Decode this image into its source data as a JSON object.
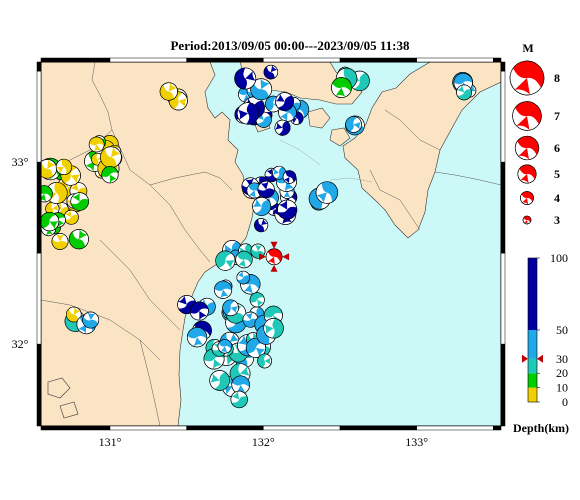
{
  "title": "Period:2013/09/05 00:00---2023/09/05 11:38",
  "map": {
    "lon_ticks": [
      "131°",
      "132°",
      "133°"
    ],
    "lat_ticks": [
      "33°",
      "32°"
    ],
    "lon_range": [
      130.55,
      133.55
    ],
    "lat_range": [
      31.55,
      33.55
    ]
  },
  "magnitude_legend": {
    "title": "M",
    "items": [
      {
        "label": "8",
        "value": 8
      },
      {
        "label": "7",
        "value": 7
      },
      {
        "label": "6",
        "value": 6
      },
      {
        "label": "5",
        "value": 5
      },
      {
        "label": "4",
        "value": 4
      },
      {
        "label": "3",
        "value": 3
      }
    ]
  },
  "depth_scale": {
    "title": "Depth(km)",
    "ticks": [
      "100",
      "50",
      "30",
      "20",
      "10",
      "0"
    ],
    "bands": [
      {
        "from": 0,
        "to": 10,
        "color": "#f0d000"
      },
      {
        "from": 10,
        "to": 20,
        "color": "#00cc00"
      },
      {
        "from": 20,
        "to": 30,
        "color": "#20c8b8"
      },
      {
        "from": 30,
        "to": 50,
        "color": "#20a8e8"
      },
      {
        "from": 50,
        "to": 100,
        "color": "#0000a0"
      }
    ]
  },
  "colors": {
    "land": "#fbe4c4",
    "sea": "#cdf8f8",
    "highlight": "#ff0000"
  },
  "latest_event": {
    "lon": 132.07,
    "lat": 32.48,
    "magnitude": 5.5,
    "depth": 30
  }
}
